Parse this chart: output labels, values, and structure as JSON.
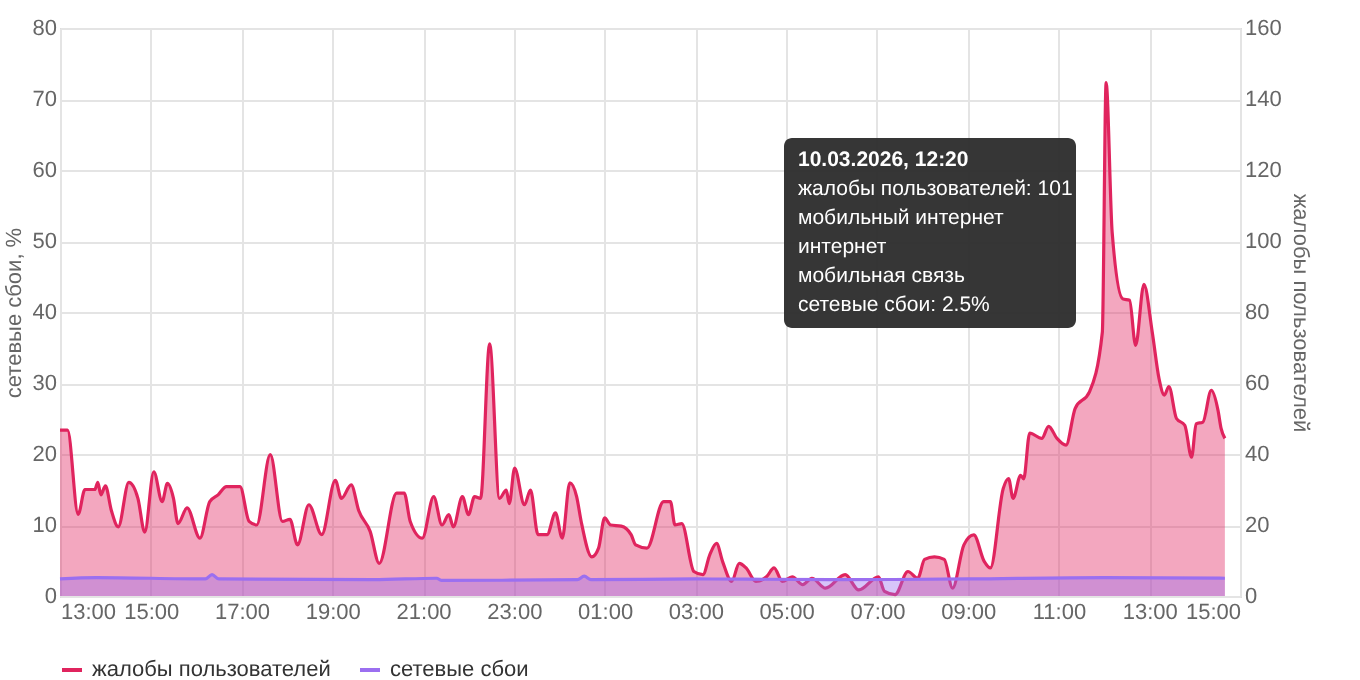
{
  "chart_data": {
    "type": "area",
    "xlabel": null,
    "ylabel": "сетевые сбои, %",
    "y2label": "жалобы пользователей",
    "xlim": [
      "2026-03-09T13:00",
      "2026-03-10T15:00"
    ],
    "xticks": [
      {
        "value": "2026-03-09T13:00",
        "label": "13:00"
      },
      {
        "value": "2026-03-09T15:00",
        "label": "15:00"
      },
      {
        "value": "2026-03-09T17:00",
        "label": "17:00"
      },
      {
        "value": "2026-03-09T19:00",
        "label": "19:00"
      },
      {
        "value": "2026-03-09T21:00",
        "label": "21:00"
      },
      {
        "value": "2026-03-09T23:00",
        "label": "23:00"
      },
      {
        "value": "2026-03-10T01:00",
        "label": "01:00"
      },
      {
        "value": "2026-03-10T03:00",
        "label": "03:00"
      },
      {
        "value": "2026-03-10T05:00",
        "label": "05:00"
      },
      {
        "value": "2026-03-10T07:00",
        "label": "07:00"
      },
      {
        "value": "2026-03-10T09:00",
        "label": "09:00"
      },
      {
        "value": "2026-03-10T11:00",
        "label": "11:00"
      },
      {
        "value": "2026-03-10T13:00",
        "label": "13:00"
      },
      {
        "value": "2026-03-10T15:00",
        "label": "15:00"
      }
    ],
    "ylim": [
      0,
      80
    ],
    "yticks": [
      0,
      10,
      20,
      30,
      40,
      50,
      60,
      70,
      80
    ],
    "y2lim": [
      0,
      160
    ],
    "y2ticks": [
      0,
      20,
      40,
      60,
      80,
      100,
      120,
      140,
      160
    ],
    "grid": true,
    "legend": "bottom",
    "line_style": "solid",
    "marker": "none",
    "annotations": [
      "10.03.2026, 12:20",
      "жалобы пользователей: 101",
      "мобильный интернет",
      "интернет",
      "мобильная связь",
      "сетевые сбои: 2.5%"
    ],
    "series": [
      {
        "name": "жалобы пользователей",
        "color": "#e0245e",
        "axis": "y2",
        "x": [
          "2026-03-09T13:00",
          "2026-03-09T13:10",
          "2026-03-09T13:24",
          "2026-03-09T13:33",
          "2026-03-09T13:46",
          "2026-03-09T13:50",
          "2026-03-09T13:54",
          "2026-03-09T14:00",
          "2026-03-09T14:08",
          "2026-03-09T14:17",
          "2026-03-09T14:31",
          "2026-03-09T14:43",
          "2026-03-09T14:52",
          "2026-03-09T15:04",
          "2026-03-09T15:15",
          "2026-03-09T15:22",
          "2026-03-09T15:30",
          "2026-03-09T15:36",
          "2026-03-09T15:48",
          "2026-03-09T16:05",
          "2026-03-09T16:18",
          "2026-03-09T16:29",
          "2026-03-09T16:40",
          "2026-03-09T16:58",
          "2026-03-09T17:10",
          "2026-03-09T17:20",
          "2026-03-09T17:38",
          "2026-03-09T17:54",
          "2026-03-09T18:04",
          "2026-03-09T18:14",
          "2026-03-09T18:29",
          "2026-03-09T18:46",
          "2026-03-09T19:04",
          "2026-03-09T19:12",
          "2026-03-09T19:25",
          "2026-03-09T19:35",
          "2026-03-09T19:50",
          "2026-03-09T20:02",
          "2026-03-09T20:25",
          "2026-03-09T20:35",
          "2026-03-09T20:43",
          "2026-03-09T20:59",
          "2026-03-09T21:14",
          "2026-03-09T21:25",
          "2026-03-09T21:34",
          "2026-03-09T21:40",
          "2026-03-09T21:52",
          "2026-03-09T22:00",
          "2026-03-09T22:08",
          "2026-03-09T22:16",
          "2026-03-09T22:28",
          "2026-03-09T22:41",
          "2026-03-09T22:50",
          "2026-03-09T22:54",
          "2026-03-09T23:01",
          "2026-03-09T23:14",
          "2026-03-09T23:22",
          "2026-03-09T23:32",
          "2026-03-09T23:44",
          "2026-03-09T23:55",
          "2026-03-10T00:04",
          "2026-03-10T00:14",
          "2026-03-10T00:23",
          "2026-03-10T00:29",
          "2026-03-10T00:43",
          "2026-03-10T00:52",
          "2026-03-10T01:00",
          "2026-03-10T01:08",
          "2026-03-10T01:22",
          "2026-03-10T01:35",
          "2026-03-10T01:41",
          "2026-03-10T01:56",
          "2026-03-10T02:18",
          "2026-03-10T02:27",
          "2026-03-10T02:33",
          "2026-03-10T02:42",
          "2026-03-10T02:58",
          "2026-03-10T03:10",
          "2026-03-10T03:19",
          "2026-03-10T03:28",
          "2026-03-10T03:36",
          "2026-03-10T03:48",
          "2026-03-10T03:58",
          "2026-03-10T04:07",
          "2026-03-10T04:20",
          "2026-03-10T04:34",
          "2026-03-10T04:44",
          "2026-03-10T04:55",
          "2026-03-10T05:08",
          "2026-03-10T05:22",
          "2026-03-10T05:34",
          "2026-03-10T05:52",
          "2026-03-10T06:18",
          "2026-03-10T06:36",
          "2026-03-10T07:02",
          "2026-03-10T07:10",
          "2026-03-10T07:24",
          "2026-03-10T07:41",
          "2026-03-10T07:54",
          "2026-03-10T08:03",
          "2026-03-10T08:16",
          "2026-03-10T08:29",
          "2026-03-10T08:40",
          "2026-03-10T08:55",
          "2026-03-10T09:08",
          "2026-03-10T09:22",
          "2026-03-10T09:30",
          "2026-03-10T09:47",
          "2026-03-10T09:54",
          "2026-03-10T10:00",
          "2026-03-10T10:10",
          "2026-03-10T10:14",
          "2026-03-10T10:22",
          "2026-03-10T10:38",
          "2026-03-10T10:47",
          "2026-03-10T10:58",
          "2026-03-10T11:10",
          "2026-03-10T11:22",
          "2026-03-10T11:41",
          "2026-03-10T11:58",
          "2026-03-10T12:03",
          "2026-03-10T12:11",
          "2026-03-10T12:25",
          "2026-03-10T12:34",
          "2026-03-10T12:42",
          "2026-03-10T12:53",
          "2026-03-10T13:04",
          "2026-03-10T13:13",
          "2026-03-10T13:20",
          "2026-03-10T13:26",
          "2026-03-10T13:36",
          "2026-03-10T13:47",
          "2026-03-10T13:56",
          "2026-03-10T14:02",
          "2026-03-10T14:11",
          "2026-03-10T14:22",
          "2026-03-10T14:31",
          "2026-03-10T14:35",
          "2026-03-10T14:40"
        ],
        "values": [
          46.7,
          46.7,
          23,
          30,
          30,
          32,
          28.5,
          31,
          24,
          19.5,
          32,
          27.5,
          18,
          35,
          26.6,
          31.7,
          27.5,
          20.4,
          24.8,
          16.3,
          26.6,
          28.5,
          30.8,
          30.8,
          21,
          20,
          39.8,
          21,
          21.6,
          14.4,
          25.7,
          17.3,
          32.6,
          27.5,
          31.3,
          24,
          18.2,
          9.2,
          29,
          29,
          21,
          16.3,
          28,
          20,
          22.9,
          19.5,
          28,
          22.9,
          28,
          27.5,
          71,
          27.5,
          29.8,
          26,
          36,
          25.7,
          29.8,
          17.3,
          17.3,
          23.4,
          16.3,
          31.9,
          28,
          21,
          11,
          13.5,
          22,
          20,
          19.7,
          17.3,
          14.4,
          13.5,
          26.6,
          26.6,
          20,
          20.4,
          6.9,
          6,
          11.6,
          14.8,
          9.7,
          4.1,
          9.2,
          7.9,
          4.1,
          5.4,
          7.9,
          4.1,
          5.4,
          3.2,
          5,
          2.2,
          6,
          1.7,
          5.4,
          1.3,
          0.4,
          6.9,
          5,
          10.3,
          11,
          10.3,
          2.2,
          14.4,
          17.2,
          9.7,
          7.9,
          30.3,
          33.1,
          27.5,
          34,
          33,
          45.9,
          44.4,
          47.8,
          44.4,
          42.5,
          52.8,
          57.5,
          74.3,
          144.6,
          102.4,
          83.7,
          83.3,
          70.6,
          87.8,
          74.3,
          61.2,
          56.6,
          59,
          50,
          48.1,
          39.1,
          48.5,
          49,
          57.9,
          52.2,
          47.2,
          44.4
        ]
      },
      {
        "name": "сетевые сбои",
        "color": "#9b6ff0",
        "axis": "y",
        "x": [
          "2026-03-09T13:00",
          "2026-03-09T13:48",
          "2026-03-09T16:12",
          "2026-03-09T16:21",
          "2026-03-09T16:30",
          "2026-03-09T19:54",
          "2026-03-09T21:18",
          "2026-03-09T21:24",
          "2026-03-10T00:24",
          "2026-03-10T00:33",
          "2026-03-10T00:42",
          "2026-03-10T03:00",
          "2026-03-10T06:00",
          "2026-03-10T09:00",
          "2026-03-10T12:00",
          "2026-03-10T14:40"
        ],
        "values": [
          2.4,
          2.6,
          2.4,
          3.0,
          2.4,
          2.3,
          2.5,
          2.2,
          2.3,
          2.8,
          2.3,
          2.4,
          2.3,
          2.4,
          2.6,
          2.5
        ]
      }
    ]
  }
}
